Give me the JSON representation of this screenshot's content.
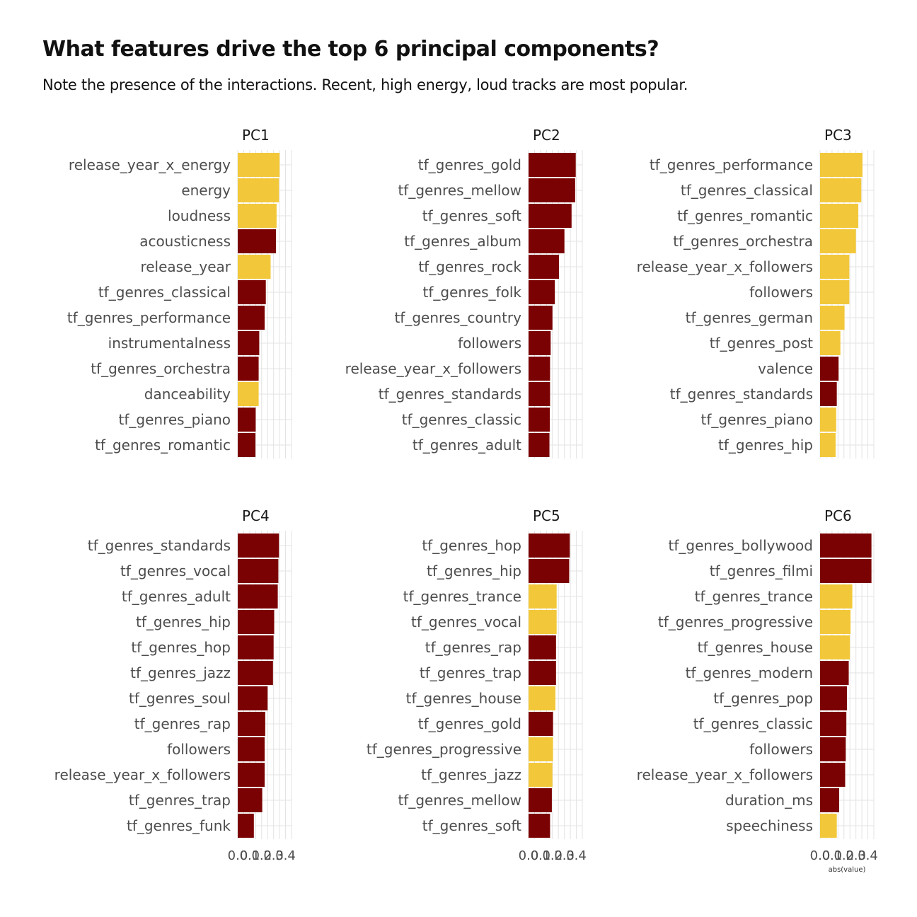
{
  "title": "What features drive the top 6 principal components?",
  "subtitle": "Note the presence of the interactions. Recent, high energy, loud tracks are most popular.",
  "colors": {
    "positive": "#F2C83A",
    "negative": "#7B0202",
    "grid": "#e3e3e3"
  },
  "chart_data": {
    "type": "bar",
    "orientation": "horizontal",
    "facets": true,
    "xlabel": "abs(value)",
    "xlim": [
      0,
      0.45
    ],
    "x_ticks": [
      0.0,
      0.1,
      0.2,
      0.3,
      0.4
    ],
    "x_tick_labels": [
      "0.0",
      "0.1",
      "0.2",
      "0.3",
      "0.4"
    ],
    "grid": true,
    "panels": [
      {
        "name": "PC1",
        "categories": [
          "release_year_x_energy",
          "energy",
          "loudness",
          "acousticness",
          "release_year",
          "tf_genres_classical",
          "tf_genres_performance",
          "instrumentalness",
          "tf_genres_orchestra",
          "danceability",
          "tf_genres_piano",
          "tf_genres_romantic"
        ],
        "values": [
          0.35,
          0.345,
          0.325,
          0.32,
          0.275,
          0.235,
          0.225,
          0.18,
          0.175,
          0.175,
          0.15,
          0.148
        ],
        "sign": [
          "positive",
          "positive",
          "positive",
          "negative",
          "positive",
          "negative",
          "negative",
          "negative",
          "negative",
          "positive",
          "negative",
          "negative"
        ]
      },
      {
        "name": "PC2",
        "categories": [
          "tf_genres_gold",
          "tf_genres_mellow",
          "tf_genres_soft",
          "tf_genres_album",
          "tf_genres_rock",
          "tf_genres_folk",
          "tf_genres_country",
          "followers",
          "release_year_x_followers",
          "tf_genres_standards",
          "tf_genres_classic",
          "tf_genres_adult"
        ],
        "values": [
          0.395,
          0.39,
          0.36,
          0.3,
          0.255,
          0.22,
          0.2,
          0.185,
          0.18,
          0.18,
          0.178,
          0.175
        ],
        "sign": [
          "negative",
          "negative",
          "negative",
          "negative",
          "negative",
          "negative",
          "negative",
          "negative",
          "negative",
          "negative",
          "negative",
          "negative"
        ]
      },
      {
        "name": "PC3",
        "categories": [
          "tf_genres_performance",
          "tf_genres_classical",
          "tf_genres_romantic",
          "tf_genres_orchestra",
          "release_year_x_followers",
          "followers",
          "tf_genres_german",
          "tf_genres_post",
          "valence",
          "tf_genres_standards",
          "tf_genres_piano",
          "tf_genres_hip"
        ],
        "values": [
          0.355,
          0.345,
          0.32,
          0.3,
          0.245,
          0.245,
          0.205,
          0.17,
          0.155,
          0.14,
          0.135,
          0.13
        ],
        "sign": [
          "positive",
          "positive",
          "positive",
          "positive",
          "positive",
          "positive",
          "positive",
          "positive",
          "negative",
          "negative",
          "positive",
          "positive"
        ]
      },
      {
        "name": "PC4",
        "categories": [
          "tf_genres_standards",
          "tf_genres_vocal",
          "tf_genres_adult",
          "tf_genres_hip",
          "tf_genres_hop",
          "tf_genres_jazz",
          "tf_genres_soul",
          "tf_genres_rap",
          "followers",
          "release_year_x_followers",
          "tf_genres_trap",
          "tf_genres_funk"
        ],
        "values": [
          0.345,
          0.34,
          0.335,
          0.305,
          0.3,
          0.295,
          0.25,
          0.23,
          0.225,
          0.225,
          0.205,
          0.135
        ],
        "sign": [
          "negative",
          "negative",
          "negative",
          "negative",
          "negative",
          "negative",
          "negative",
          "negative",
          "negative",
          "negative",
          "negative",
          "negative"
        ]
      },
      {
        "name": "PC5",
        "categories": [
          "tf_genres_hop",
          "tf_genres_hip",
          "tf_genres_trance",
          "tf_genres_vocal",
          "tf_genres_rap",
          "tf_genres_trap",
          "tf_genres_house",
          "tf_genres_gold",
          "tf_genres_progressive",
          "tf_genres_jazz",
          "tf_genres_mellow",
          "tf_genres_soft"
        ],
        "values": [
          0.345,
          0.34,
          0.235,
          0.235,
          0.23,
          0.23,
          0.225,
          0.205,
          0.205,
          0.2,
          0.195,
          0.18
        ],
        "sign": [
          "negative",
          "negative",
          "positive",
          "positive",
          "negative",
          "negative",
          "positive",
          "negative",
          "positive",
          "positive",
          "negative",
          "negative"
        ]
      },
      {
        "name": "PC6",
        "categories": [
          "tf_genres_bollywood",
          "tf_genres_filmi",
          "tf_genres_trance",
          "tf_genres_progressive",
          "tf_genres_house",
          "tf_genres_modern",
          "tf_genres_pop",
          "tf_genres_classic",
          "followers",
          "release_year_x_followers",
          "duration_ms",
          "speechiness"
        ],
        "values": [
          0.43,
          0.43,
          0.27,
          0.255,
          0.25,
          0.24,
          0.225,
          0.22,
          0.215,
          0.21,
          0.16,
          0.14
        ],
        "sign": [
          "negative",
          "negative",
          "positive",
          "positive",
          "positive",
          "negative",
          "negative",
          "negative",
          "negative",
          "negative",
          "negative",
          "positive"
        ]
      }
    ]
  }
}
